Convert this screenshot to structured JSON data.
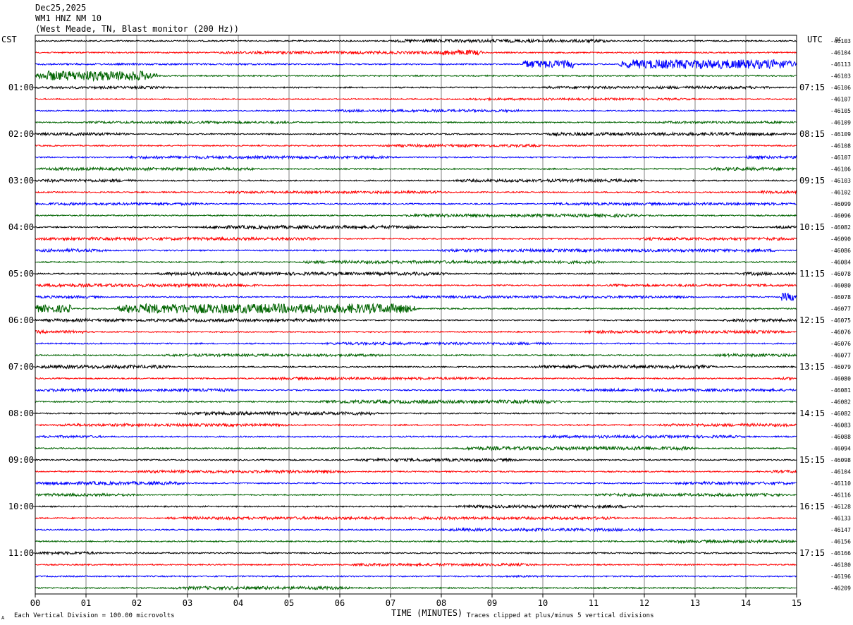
{
  "header": {
    "date": "Dec25,2025",
    "station": "WM1 HNZ NM 10",
    "location": "(West Meade, TN, Blast monitor (200 Hz))"
  },
  "labels": {
    "left_tz": "CST",
    "right_tz": "UTC",
    "dc": "DC",
    "xlabel": "TIME (MINUTES)",
    "footer_left": "Each Vertical Division =  100.00 microvolts",
    "footer_right": "Traces clipped at plus/minus 5 vertical divisions",
    "corner_mark": "A"
  },
  "chart_data": {
    "type": "helicorder",
    "x_range": [
      0,
      15
    ],
    "x_ticks": [
      "00",
      "01",
      "02",
      "03",
      "04",
      "05",
      "06",
      "07",
      "08",
      "09",
      "10",
      "11",
      "12",
      "13",
      "14",
      "15"
    ],
    "rows_per_hour": 4,
    "trace_colors": [
      "#000000",
      "#ff0000",
      "#0000ff",
      "#006400"
    ],
    "left_time_labels": [
      "01:00",
      "02:00",
      "03:00",
      "04:00",
      "05:00",
      "06:00",
      "07:00",
      "08:00",
      "09:00",
      "10:00",
      "11:00"
    ],
    "right_time_labels": [
      "07:15",
      "08:15",
      "09:15",
      "10:15",
      "11:15",
      "12:15",
      "13:15",
      "14:15",
      "15:15",
      "16:15",
      "17:15"
    ],
    "dc_values": [
      "-46103",
      "-46104",
      "-46113",
      "-46103",
      "-46106",
      "-46107",
      "-46105",
      "-46109",
      "-46109",
      "-46108",
      "-46107",
      "-46106",
      "-46103",
      "-46102",
      "-46099",
      "-46096",
      "-46082",
      "-46090",
      "-46086",
      "-46084",
      "-46078",
      "-46080",
      "-46078",
      "-46077",
      "-46075",
      "-46076",
      "-46076",
      "-46077",
      "-46079",
      "-46080",
      "-46081",
      "-46082",
      "-46082",
      "-46083",
      "-46088",
      "-46094",
      "-46098",
      "-46104",
      "-46110",
      "-46116",
      "-46128",
      "-46133",
      "-46147",
      "-46156",
      "-46166",
      "-46180",
      "-46196",
      "-46209"
    ],
    "activity": [
      [
        [
          7.0,
          11.4,
          2.2
        ]
      ],
      [
        [
          3.6,
          8.4,
          2.0
        ],
        [
          8.0,
          8.8,
          3.6
        ]
      ],
      [
        [
          0,
          5.0,
          1.2
        ],
        [
          9.6,
          10.6,
          5.5
        ],
        [
          11.5,
          15,
          6.5
        ]
      ],
      [
        [
          0,
          2.4,
          7.0
        ]
      ],
      [
        [
          0,
          2.6,
          1.7
        ],
        [
          10.0,
          14.5,
          1.8
        ]
      ],
      [
        [
          8.5,
          13.0,
          1.5
        ]
      ],
      [
        [
          5.8,
          9.6,
          1.8
        ]
      ],
      [
        [
          1.0,
          5.2,
          1.6
        ],
        [
          12.2,
          15,
          1.6
        ]
      ],
      [
        [
          0,
          1.8,
          2.0
        ],
        [
          10.0,
          14.8,
          2.2
        ]
      ],
      [
        [
          6.8,
          10.0,
          1.9
        ]
      ],
      [
        [
          1.8,
          7.0,
          2.0
        ],
        [
          14.0,
          15,
          2.0
        ]
      ],
      [
        [
          0,
          4.4,
          2.0
        ],
        [
          13.2,
          15,
          2.2
        ]
      ],
      [
        [
          0,
          2.0,
          2.0
        ],
        [
          8.2,
          12.0,
          2.0
        ]
      ],
      [
        [
          3.7,
          8.2,
          1.7
        ],
        [
          14.3,
          15,
          2.0
        ]
      ],
      [
        [
          0,
          3.4,
          1.8
        ],
        [
          10.2,
          15,
          1.8
        ]
      ],
      [
        [
          7.3,
          12.0,
          2.2
        ]
      ],
      [
        [
          3.3,
          7.6,
          2.3
        ],
        [
          14.6,
          15,
          1.8
        ]
      ],
      [
        [
          0,
          5.7,
          2.0
        ],
        [
          11.8,
          15,
          2.0
        ]
      ],
      [
        [
          0,
          1.4,
          2.2
        ],
        [
          7.9,
          14.7,
          2.0
        ]
      ],
      [
        [
          5.2,
          11.2,
          2.0
        ]
      ],
      [
        [
          2.4,
          8.2,
          2.2
        ],
        [
          13.8,
          15,
          2.2
        ]
      ],
      [
        [
          0,
          4.4,
          2.2
        ],
        [
          11.2,
          15,
          1.6
        ]
      ],
      [
        [
          0,
          1.3,
          1.8
        ],
        [
          7.2,
          13.0,
          1.7
        ],
        [
          14.7,
          15,
          5.5
        ]
      ],
      [
        [
          0,
          0.7,
          5.2
        ],
        [
          1.6,
          7.5,
          6.8
        ]
      ],
      [
        [
          0,
          6.0,
          2.0
        ],
        [
          13.5,
          15,
          2.0
        ]
      ],
      [
        [
          0,
          1.0,
          2.0
        ],
        [
          10.8,
          14.8,
          2.0
        ]
      ],
      [
        [
          5.7,
          10.2,
          1.8
        ]
      ],
      [
        [
          2.5,
          7.0,
          1.8
        ],
        [
          13.4,
          15,
          2.0
        ]
      ],
      [
        [
          0,
          2.7,
          2.4
        ],
        [
          9.8,
          13.4,
          2.3
        ]
      ],
      [
        [
          4.6,
          9.0,
          1.8
        ],
        [
          14.6,
          15,
          1.8
        ]
      ],
      [
        [
          0,
          4.0,
          2.0
        ],
        [
          10.5,
          15,
          1.8
        ]
      ],
      [
        [
          5.6,
          10.4,
          2.4
        ]
      ],
      [
        [
          2.8,
          6.8,
          2.3
        ]
      ],
      [
        [
          0.4,
          5.0,
          1.9
        ],
        [
          12.3,
          15,
          2.0
        ]
      ],
      [
        [
          0,
          1.4,
          1.7
        ],
        [
          9.8,
          14.0,
          1.9
        ]
      ],
      [
        [
          8.4,
          13.0,
          2.5
        ]
      ],
      [
        [
          6.3,
          9.6,
          2.0
        ]
      ],
      [
        [
          2.0,
          6.2,
          2.0
        ],
        [
          14.5,
          15,
          2.0
        ]
      ],
      [
        [
          0,
          3.0,
          2.3
        ],
        [
          12.6,
          15,
          2.0
        ]
      ],
      [
        [
          0,
          2.0,
          1.9
        ],
        [
          11.0,
          14.8,
          2.0
        ]
      ],
      [
        [
          8.3,
          12.0,
          2.0
        ]
      ],
      [
        [
          2.6,
          11.5,
          1.9
        ]
      ],
      [
        [
          8.0,
          12.2,
          2.0
        ]
      ],
      [
        [
          12.4,
          15,
          2.0
        ]
      ],
      [
        [
          0,
          1.3,
          2.0
        ]
      ],
      [
        [
          6.2,
          9.9,
          1.8
        ]
      ],
      [
        [
          9.0,
          10.2,
          1.2
        ]
      ],
      [
        [
          2.7,
          6.2,
          2.2
        ]
      ]
    ]
  }
}
